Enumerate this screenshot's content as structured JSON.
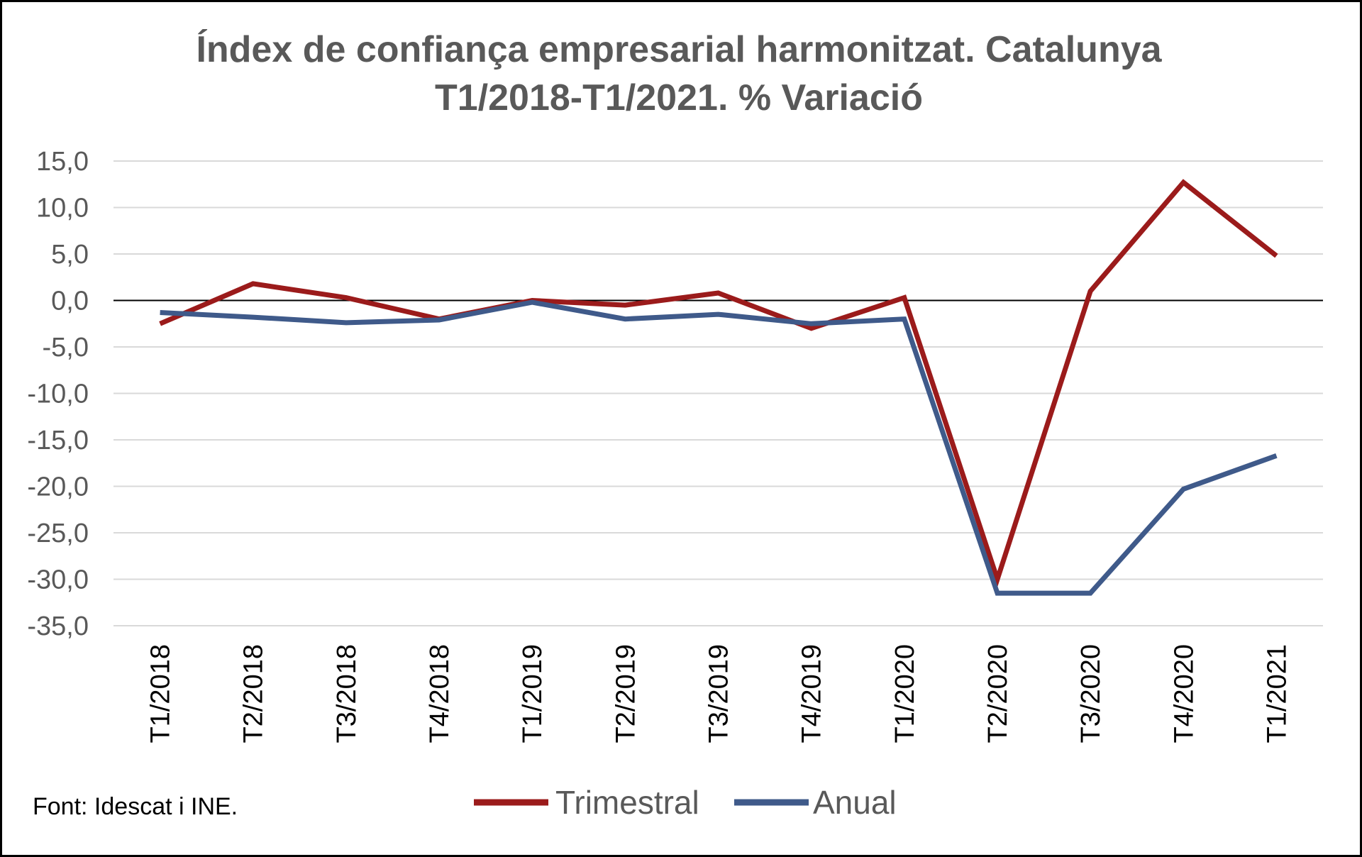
{
  "chart_data": {
    "type": "line",
    "title": [
      "Índex de confiança empresarial harmonitzat. Catalunya",
      "T1/2018-T1/2021. %  Variació"
    ],
    "categories": [
      "T1/2018",
      "T2/2018",
      "T3/2018",
      "T4/2018",
      "T1/2019",
      "T2/2019",
      "T3/2019",
      "T4/2019",
      "T1/2020",
      "T2/2020",
      "T3/2020",
      "T4/2020",
      "T1/2021"
    ],
    "y_ticks": [
      "15,0",
      "10,0",
      "5,0",
      "0,0",
      "-5,0",
      "-10,0",
      "-15,0",
      "-20,0",
      "-25,0",
      "-30,0",
      "-35,0"
    ],
    "ylim": [
      -35,
      15
    ],
    "grid": true,
    "legend_position": "bottom",
    "series": [
      {
        "name": "Trimestral",
        "color": "#9b1b1b",
        "values": [
          -2.5,
          1.8,
          0.3,
          -2.0,
          0.0,
          -0.5,
          0.8,
          -3.0,
          0.3,
          -30.0,
          1.0,
          12.7,
          4.8
        ]
      },
      {
        "name": "Anual",
        "color": "#3f5a8a",
        "values": [
          -1.3,
          -1.8,
          -2.4,
          -2.1,
          -0.2,
          -2.0,
          -1.5,
          -2.5,
          -2.0,
          -31.5,
          -31.5,
          -20.3,
          -16.7
        ]
      }
    ]
  },
  "source": "Font: Idescat i INE."
}
